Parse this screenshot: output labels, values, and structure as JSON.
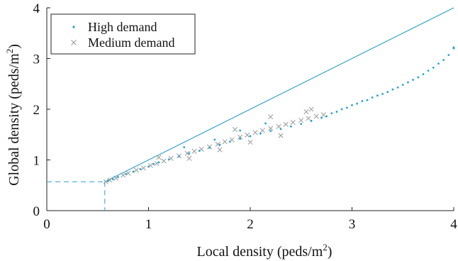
{
  "chart_data": {
    "type": "scatter",
    "xlabel": "Local density (peds/m",
    "xlabel_sup": "2",
    "xlabel_tail": ")",
    "ylabel": "Global density (peds/m",
    "ylabel_sup": "2",
    "ylabel_tail": ")",
    "xlim": [
      0,
      4
    ],
    "ylim": [
      0,
      4
    ],
    "xticks": [
      "0",
      "1",
      "2",
      "3",
      "4"
    ],
    "yticks": [
      "0",
      "1",
      "2",
      "3",
      "4"
    ],
    "grid": false,
    "legend_position": "top-left",
    "reference_lines": [
      {
        "kind": "identity",
        "from": [
          0.57,
          0.57
        ],
        "to": [
          4.0,
          4.0
        ],
        "color": "#2a9fc8"
      },
      {
        "kind": "dashed-guide",
        "value": 0.57,
        "color": "#2a9fc8"
      }
    ],
    "series": [
      {
        "name": "High demand",
        "marker": "dot",
        "color": "#23a3d0",
        "points": [
          [
            0.6,
            0.59
          ],
          [
            0.65,
            0.62
          ],
          [
            0.7,
            0.66
          ],
          [
            0.78,
            0.72
          ],
          [
            0.85,
            0.77
          ],
          [
            0.92,
            0.82
          ],
          [
            1.0,
            0.87
          ],
          [
            1.05,
            0.92
          ],
          [
            1.1,
            0.95
          ],
          [
            1.2,
            1.01
          ],
          [
            1.3,
            1.07
          ],
          [
            1.4,
            1.13
          ],
          [
            1.5,
            1.18
          ],
          [
            1.6,
            1.24
          ],
          [
            1.7,
            1.3
          ],
          [
            1.8,
            1.36
          ],
          [
            1.9,
            1.42
          ],
          [
            2.0,
            1.47
          ],
          [
            2.1,
            1.52
          ],
          [
            2.2,
            1.57
          ],
          [
            2.3,
            1.61
          ],
          [
            2.4,
            1.66
          ],
          [
            2.5,
            1.71
          ],
          [
            2.6,
            1.77
          ],
          [
            2.7,
            1.83
          ],
          [
            2.75,
            1.86
          ],
          [
            2.8,
            1.92
          ],
          [
            2.85,
            1.95
          ],
          [
            2.9,
            2.0
          ],
          [
            2.95,
            2.03
          ],
          [
            3.0,
            2.08
          ],
          [
            3.05,
            2.11
          ],
          [
            3.1,
            2.16
          ],
          [
            3.15,
            2.18
          ],
          [
            3.2,
            2.23
          ],
          [
            3.25,
            2.27
          ],
          [
            3.3,
            2.3
          ],
          [
            3.35,
            2.34
          ],
          [
            3.4,
            2.39
          ],
          [
            3.45,
            2.43
          ],
          [
            3.5,
            2.48
          ],
          [
            3.55,
            2.53
          ],
          [
            3.6,
            2.58
          ],
          [
            3.65,
            2.63
          ],
          [
            3.7,
            2.69
          ],
          [
            3.75,
            2.76
          ],
          [
            3.8,
            2.82
          ],
          [
            3.85,
            2.9
          ],
          [
            3.9,
            2.97
          ],
          [
            3.95,
            3.07
          ],
          [
            4.0,
            3.2
          ],
          [
            4.0,
            3.22
          ],
          [
            1.35,
            1.25
          ],
          [
            1.65,
            1.4
          ],
          [
            1.9,
            1.58
          ],
          [
            2.15,
            1.72
          ]
        ]
      },
      {
        "name": "Medium demand",
        "marker": "x",
        "color": "#9a9a9a",
        "points": [
          [
            0.58,
            0.57
          ],
          [
            0.62,
            0.6
          ],
          [
            0.68,
            0.64
          ],
          [
            0.75,
            0.7
          ],
          [
            0.8,
            0.74
          ],
          [
            0.88,
            0.8
          ],
          [
            0.95,
            0.84
          ],
          [
            1.02,
            0.89
          ],
          [
            1.08,
            0.93
          ],
          [
            1.15,
            0.98
          ],
          [
            1.22,
            1.03
          ],
          [
            1.3,
            1.08
          ],
          [
            1.38,
            1.13
          ],
          [
            1.45,
            1.17
          ],
          [
            1.52,
            1.21
          ],
          [
            1.6,
            1.26
          ],
          [
            1.68,
            1.31
          ],
          [
            1.75,
            1.36
          ],
          [
            1.82,
            1.4
          ],
          [
            1.9,
            1.45
          ],
          [
            1.97,
            1.49
          ],
          [
            2.05,
            1.54
          ],
          [
            2.12,
            1.58
          ],
          [
            2.2,
            1.62
          ],
          [
            2.28,
            1.66
          ],
          [
            2.35,
            1.7
          ],
          [
            2.42,
            1.74
          ],
          [
            2.5,
            1.78
          ],
          [
            2.57,
            1.82
          ],
          [
            2.65,
            1.86
          ],
          [
            2.72,
            1.89
          ],
          [
            1.1,
            1.05
          ],
          [
            1.4,
            1.03
          ],
          [
            1.7,
            1.2
          ],
          [
            2.0,
            1.35
          ],
          [
            2.3,
            1.48
          ],
          [
            2.55,
            1.95
          ],
          [
            2.6,
            2.0
          ],
          [
            2.2,
            1.85
          ],
          [
            1.85,
            1.6
          ]
        ]
      }
    ]
  }
}
